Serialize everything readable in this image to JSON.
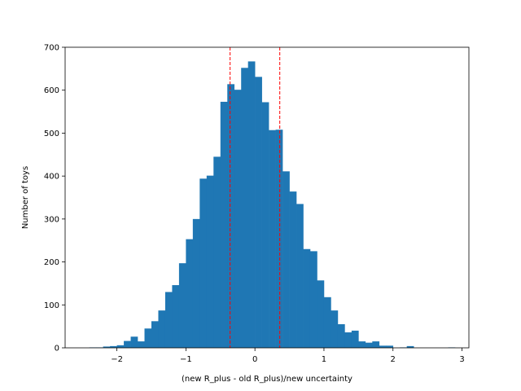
{
  "chart_data": {
    "type": "bar",
    "title": "",
    "xlabel": "(new R_plus - old R_plus)/new uncertainty",
    "ylabel": "Number of toys",
    "xlim": [
      -2.75,
      3.1
    ],
    "ylim": [
      0,
      700
    ],
    "xticks": [
      -2,
      -1,
      0,
      1,
      2,
      3
    ],
    "xtick_labels": [
      "−2",
      "−1",
      "0",
      "1",
      "2",
      "3"
    ],
    "yticks": [
      0,
      100,
      200,
      300,
      400,
      500,
      600,
      700
    ],
    "ytick_labels": [
      "0",
      "100",
      "200",
      "300",
      "400",
      "500",
      "600",
      "700"
    ],
    "bin_start": -2.4,
    "bin_width": 0.1,
    "values": [
      1,
      1,
      3,
      4,
      6,
      16,
      26,
      15,
      45,
      62,
      87,
      130,
      146,
      197,
      253,
      300,
      394,
      401,
      445,
      573,
      614,
      601,
      652,
      667,
      631,
      572,
      507,
      508,
      411,
      364,
      335,
      230,
      225,
      157,
      118,
      87,
      55,
      36,
      40,
      15,
      12,
      15,
      5,
      5,
      0,
      1,
      4,
      0,
      0,
      0,
      0,
      0,
      1
    ],
    "bar_color": "#1f77b4",
    "vlines": [
      -0.36,
      0.36
    ],
    "vline_color": "#ff0000",
    "vline_style": "dashed",
    "grid": false
  }
}
